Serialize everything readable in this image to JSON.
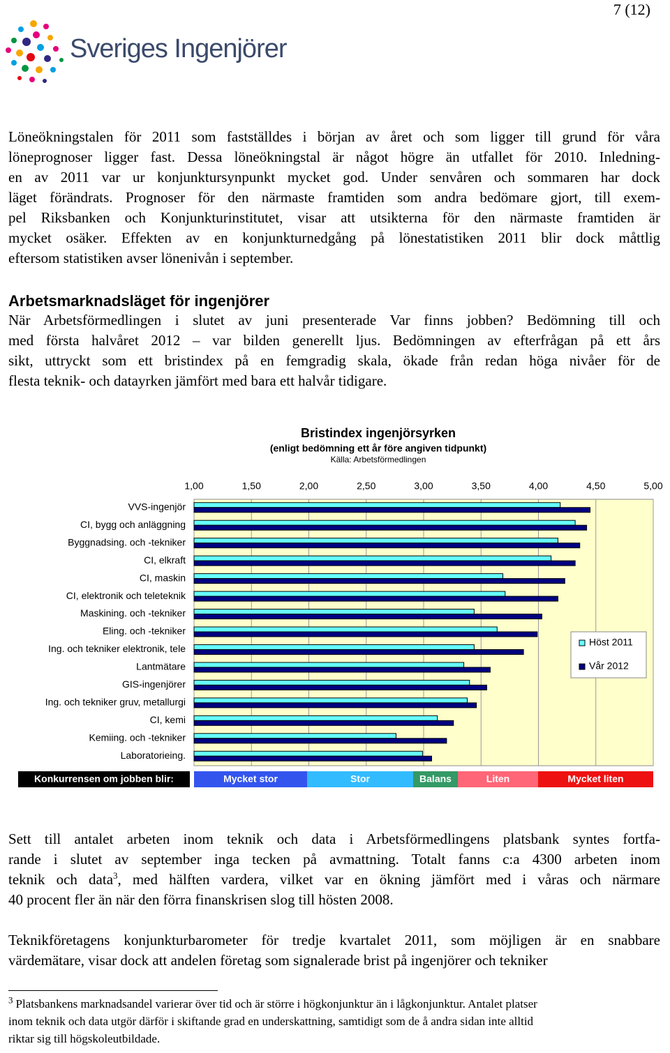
{
  "header": {
    "page_number": "7 (12)",
    "logo_text": "Sveriges Ingenjörer"
  },
  "paragraphs": [
    {
      "lines": [
        "Löneökningstalen för 2011 som fastställdes i början av året och som ligger till grund för våra",
        "löneprognoser ligger fast. Dessa löneökningstal är något högre än utfallet för 2010. Inledning-",
        "en av 2011 var ur konjunktursynpunkt mycket god. Under senvåren och sommaren har dock",
        "läget förändrats. Prognoser för den närmaste framtiden som andra bedömare gjort, till exem-",
        "pel Riksbanken och Konjunkturinstitutet, visar att utsikterna för den närmaste framtiden är",
        "mycket osäker. Effekten av en konjunkturnedgång på lönestatistiken 2011 blir dock måttlig",
        "eftersom statistiken avser lönenivån i september."
      ]
    },
    {
      "lines": [
        "När Arbetsförmedlingen i slutet av juni presenterade Var finns jobben? Bedömning till och",
        "med första halvåret 2012 – var bilden generellt ljus. Bedömningen av efterfrågan på ett års",
        "sikt, uttryckt som ett bristindex på en femgradig skala, ökade från redan höga nivåer för de",
        "flesta teknik- och datayrken jämfört med bara ett halvår tidigare."
      ]
    },
    {
      "lines": [
        "Sett till antalet arbeten inom teknik och data i Arbetsförmedlingens platsbank syntes fortfa-",
        "rande i slutet av september inga tecken på avmattning. Totalt fanns c:a 4300 arbeten inom",
        {
          "text": "teknik och data",
          "sup": "3",
          "after": ", med hälften vardera, vilket var en ökning jämfört med i våras och närmare"
        },
        "40 procent fler än när den förra finanskrisen slog till hösten 2008."
      ]
    },
    {
      "lines": [
        "Teknikföretagens konjunkturbarometer för tredje kvartalet 2011, som möjligen är en snabbare",
        "värdemätare, visar dock att andelen företag som signalerade brist på ingenjörer och tekniker"
      ]
    }
  ],
  "section_heading": "Arbetsmarknadsläget för ingenjörer",
  "footnote": {
    "number": "3",
    "lines": [
      "Platsbankens marknadsandel varierar över tid och är större i högkonjunktur än i lågkonjunktur. Antalet platser",
      "inom teknik och data utgör därför i skiftande grad en underskattning, samtidigt som de å andra sidan inte alltid",
      "riktar sig till högskoleutbildade."
    ]
  },
  "chart_data": {
    "type": "bar",
    "orientation": "horizontal",
    "title": "Bristindex ingenjörsyrken",
    "subtitle": "(enligt bedömning ett år före angiven tidpunkt)",
    "source": "Källa: Arbetsförmedlingen",
    "categories": [
      "VVS-ingenjör",
      "CI, bygg och anläggning",
      "Byggnadsing. och -tekniker",
      "CI, elkraft",
      "CI, maskin",
      "CI, elektronik och teleteknik",
      "Maskining. och -tekniker",
      "Eling. och -tekniker",
      "Ing. och tekniker elektronik, tele",
      "Lantmätare",
      "GIS-ingenjörer",
      "Ing. och tekniker gruv, metallurgi",
      "CI, kemi",
      "Kemiing. och -tekniker",
      "Laboratorieing."
    ],
    "series": [
      {
        "name": "Höst 2011",
        "color": "#66ffff",
        "values": [
          4.19,
          4.32,
          4.17,
          4.11,
          3.69,
          3.71,
          3.44,
          3.64,
          3.44,
          3.35,
          3.4,
          3.38,
          3.12,
          2.76,
          2.99
        ]
      },
      {
        "name": "Vår 2012",
        "color": "#000080",
        "values": [
          4.45,
          4.42,
          4.36,
          4.32,
          4.23,
          4.17,
          4.03,
          3.99,
          3.87,
          3.58,
          3.55,
          3.46,
          3.26,
          3.2,
          3.07
        ]
      }
    ],
    "xlim": [
      1,
      5
    ],
    "xticks": [
      {
        "value": 1,
        "label": "1,00"
      },
      {
        "value": 1.5,
        "label": "1,50"
      },
      {
        "value": 2,
        "label": "2,00"
      },
      {
        "value": 2.5,
        "label": "2,50"
      },
      {
        "value": 3,
        "label": "3,00"
      },
      {
        "value": 3.5,
        "label": "3,50"
      },
      {
        "value": 4,
        "label": "4,00"
      },
      {
        "value": 4.5,
        "label": "4,50"
      },
      {
        "value": 5,
        "label": "5,00"
      }
    ],
    "grid": true,
    "background": "#ffffcc",
    "legend": "right",
    "scale_label": "Konkurrensen om jobben blir:",
    "scale": [
      {
        "label": "Mycket stor",
        "color": "#3355ee"
      },
      {
        "label": "Stor",
        "color": "#33bbff"
      },
      {
        "label": "Balans",
        "color": "#339966"
      },
      {
        "label": "Liten",
        "color": "#ff6677"
      },
      {
        "label": "Mycket liten",
        "color": "#ee1111"
      }
    ]
  }
}
